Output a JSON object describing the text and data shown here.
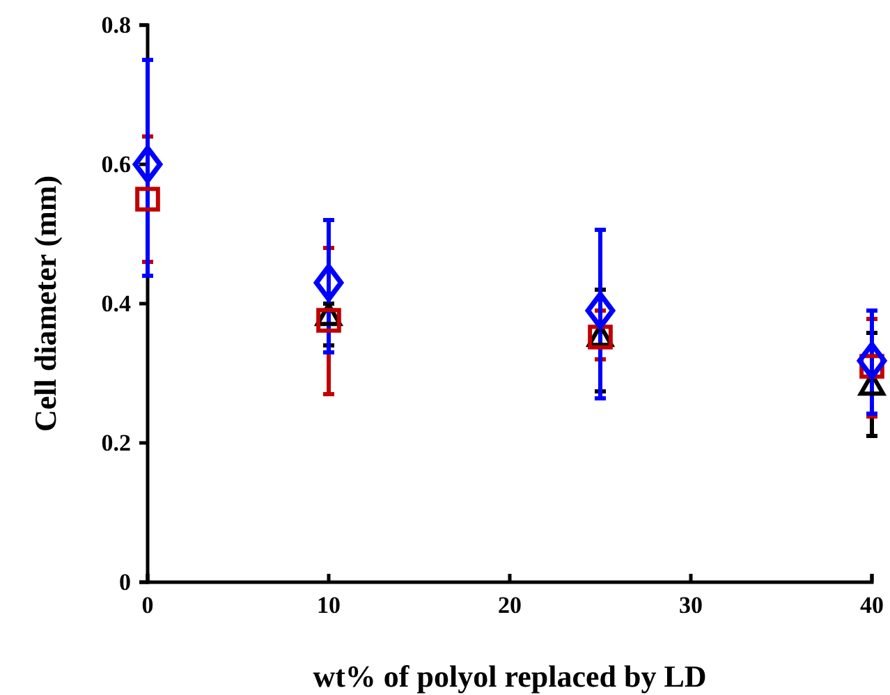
{
  "chart_data": {
    "type": "scatter",
    "xlabel": "wt% of polyol replaced by LD",
    "ylabel": "Cell diameter (mm)",
    "xlim": [
      0,
      40
    ],
    "xticks": [
      0,
      10,
      20,
      30,
      40
    ],
    "ylim": [
      0,
      0.8
    ],
    "yticks": [
      0,
      0.2,
      0.4,
      0.6,
      0.8
    ],
    "grid": false,
    "x": [
      0,
      10,
      25,
      40
    ],
    "series": [
      {
        "color": "#000000",
        "marker": "triangle",
        "values": [
          null,
          0.38,
          0.35,
          0.28
        ],
        "errors": [
          null,
          [
            0.34,
            0.4
          ],
          [
            0.274,
            0.42
          ],
          [
            0.21,
            0.358
          ]
        ]
      },
      {
        "color": "#c00000",
        "marker": "square",
        "values": [
          0.55,
          0.376,
          0.352,
          0.31
        ],
        "errors": [
          [
            0.46,
            0.64
          ],
          [
            0.27,
            0.48
          ],
          [
            0.32,
            0.39
          ],
          [
            0.238,
            0.378
          ]
        ]
      },
      {
        "color": "#0000ff",
        "marker": "diamond",
        "values": [
          0.6,
          0.43,
          0.39,
          0.318
        ],
        "errors": [
          [
            0.44,
            0.75
          ],
          [
            0.33,
            0.52
          ],
          [
            0.264,
            0.506
          ],
          [
            0.242,
            0.39
          ]
        ]
      }
    ]
  }
}
